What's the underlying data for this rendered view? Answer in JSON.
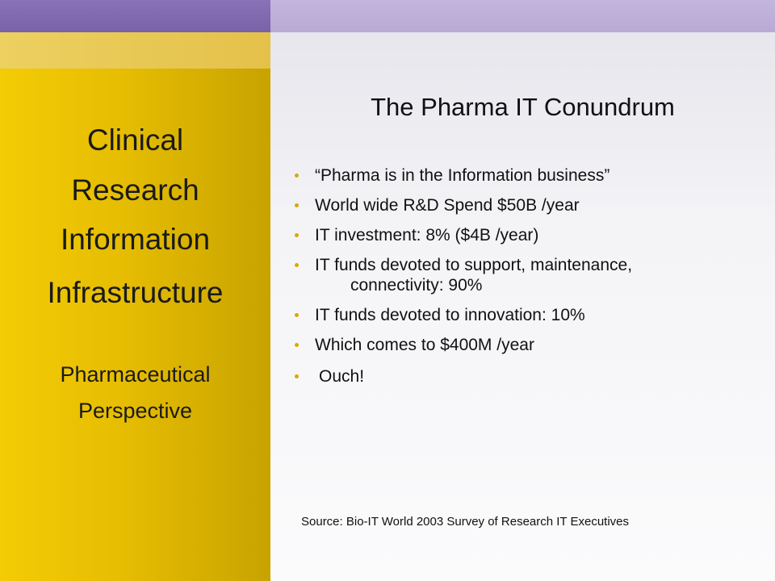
{
  "sidebar": {
    "title_lines": [
      "Clinical",
      "Research",
      "Information",
      "Infrastructure"
    ],
    "subtitle_lines": [
      "Pharmaceutical",
      "Perspective"
    ]
  },
  "main": {
    "title": "The Pharma IT Conundrum",
    "bullets": [
      "“Pharma is in the Information business”",
      "World wide R&D Spend $50B /year",
      "IT investment: 8% ($4B /year)",
      "IT funds devoted to support, maintenance,",
      "connectivity: 90%",
      "IT funds devoted to innovation: 10%",
      "Which comes to $400M /year",
      "Ouch!"
    ],
    "source": "Source: Bio-IT World 2003 Survey of Research IT Executives"
  },
  "colors": {
    "banner_left": "#8a72b8",
    "banner_right": "#c3b6dc",
    "left_panel": "#f3cc05",
    "accent_red": "#e05525",
    "bullet_dot": "#d8a800"
  }
}
